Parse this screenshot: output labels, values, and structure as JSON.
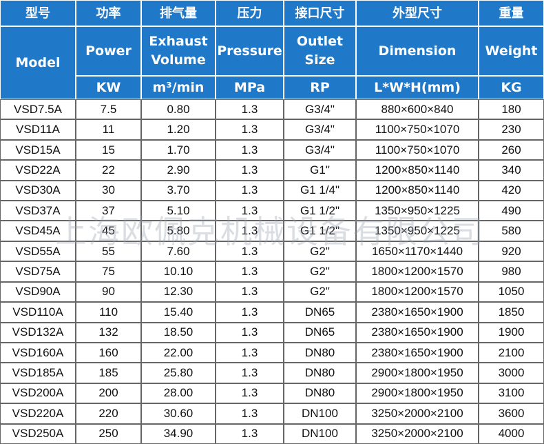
{
  "header": {
    "chinese": [
      "型号",
      "功率",
      "排气量",
      "压力",
      "接口尺寸",
      "外型尺寸",
      "重量"
    ],
    "english": [
      "Model",
      "Power",
      "Exhaust Volume",
      "Pressure",
      "Outlet Size",
      "Dimension",
      "Weight"
    ],
    "units": [
      "KW",
      "m³/min",
      "MPa",
      "RP",
      "L*W*H(mm)",
      "KG"
    ]
  },
  "table": {
    "rows": [
      [
        "VSD7.5A",
        "7.5",
        "0.80",
        "1.3",
        "G3/4\"",
        "880×600×840",
        "180"
      ],
      [
        "VSD11A",
        "11",
        "1.20",
        "1.3",
        "G3/4\"",
        "1100×750×1070",
        "230"
      ],
      [
        "VSD15A",
        "15",
        "1.70",
        "1.3",
        "G3/4\"",
        "1100×750×1070",
        "260"
      ],
      [
        "VSD22A",
        "22",
        "2.90",
        "1.3",
        "G1\"",
        "1200×850×1140",
        "340"
      ],
      [
        "VSD30A",
        "30",
        "3.70",
        "1.3",
        "G1 1/4\"",
        "1200×850×1140",
        "420"
      ],
      [
        "VSD37A",
        "37",
        "5.10",
        "1.3",
        "G1 1/2\"",
        "1350×950×1225",
        "490"
      ],
      [
        "VSD45A",
        "45",
        "5.80",
        "1.3",
        "G1 1/2\"",
        "1350×950×1225",
        "580"
      ],
      [
        "VSD55A",
        "55",
        "7.60",
        "1.3",
        "G2\"",
        "1650×1170×1440",
        "920"
      ],
      [
        "VSD75A",
        "75",
        "10.10",
        "1.3",
        "G2\"",
        "1800×1200×1570",
        "980"
      ],
      [
        "VSD90A",
        "90",
        "12.30",
        "1.3",
        "G2\"",
        "1800×1200×1570",
        "1050"
      ],
      [
        "VSD110A",
        "110",
        "15.40",
        "1.3",
        "DN65",
        "2380×1650×1900",
        "1850"
      ],
      [
        "VSD132A",
        "132",
        "18.50",
        "1.3",
        "DN65",
        "2380×1650×1900",
        "1900"
      ],
      [
        "VSD160A",
        "160",
        "22.00",
        "1.3",
        "DN80",
        "2380×1650×1900",
        "2100"
      ],
      [
        "VSD185A",
        "185",
        "25.80",
        "1.3",
        "DN80",
        "2900×1800×1950",
        "3000"
      ],
      [
        "VSD200A",
        "200",
        "28.00",
        "1.3",
        "DN80",
        "2900×1800×1950",
        "3100"
      ],
      [
        "VSD220A",
        "220",
        "30.60",
        "1.3",
        "DN100",
        "3250×2000×2100",
        "3600"
      ],
      [
        "VSD250A",
        "250",
        "34.90",
        "1.3",
        "DN100",
        "3250×2000×2100",
        "4000"
      ]
    ]
  },
  "watermark": "上海欧佩克机械设备有限公司"
}
